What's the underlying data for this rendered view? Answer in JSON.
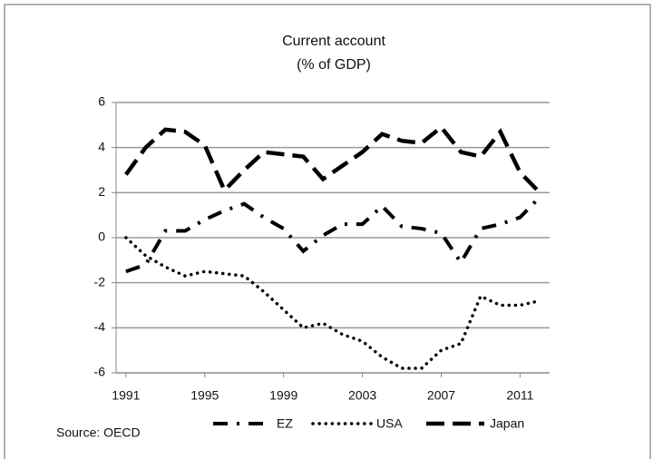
{
  "chart_data": {
    "type": "line",
    "title": "Current account",
    "subtitle": "(% of GDP)",
    "source": "Source: OECD",
    "x": [
      1991,
      1992,
      1993,
      1994,
      1995,
      1996,
      1997,
      1998,
      1999,
      2000,
      2001,
      2002,
      2003,
      2004,
      2005,
      2006,
      2007,
      2008,
      2009,
      2010,
      2011,
      2012
    ],
    "series": [
      {
        "name": "EZ",
        "color": "#000000",
        "style": "dashdot",
        "values": [
          -1.5,
          -1.2,
          0.3,
          0.3,
          0.8,
          1.2,
          1.5,
          0.9,
          0.4,
          -0.6,
          0.1,
          0.6,
          0.6,
          1.4,
          0.5,
          0.4,
          0.2,
          -1.1,
          0.4,
          0.6,
          0.9,
          1.8
        ]
      },
      {
        "name": "USA",
        "color": "#000000",
        "style": "dotted",
        "values": [
          0.0,
          -0.8,
          -1.3,
          -1.7,
          -1.5,
          -1.6,
          -1.7,
          -2.4,
          -3.2,
          -4.0,
          -3.8,
          -4.3,
          -4.6,
          -5.3,
          -5.8,
          -5.8,
          -5.0,
          -4.7,
          -2.6,
          -3.0,
          -3.0,
          -2.8
        ]
      },
      {
        "name": "Japan",
        "color": "#000000",
        "style": "dashed",
        "values": [
          2.8,
          4.0,
          4.8,
          4.7,
          4.1,
          2.1,
          3.0,
          3.8,
          3.7,
          3.6,
          2.6,
          3.2,
          3.8,
          4.6,
          4.3,
          4.2,
          4.9,
          3.8,
          3.6,
          4.7,
          2.9,
          2.0
        ]
      }
    ],
    "xlim": [
      1990.5,
      2012.5
    ],
    "xticks": [
      1991,
      1995,
      1999,
      2003,
      2007,
      2011
    ],
    "ylim": [
      -6,
      6
    ],
    "yticks": [
      -6,
      -4,
      -2,
      0,
      2,
      4,
      6
    ],
    "grid": true,
    "legend": "bottom"
  }
}
